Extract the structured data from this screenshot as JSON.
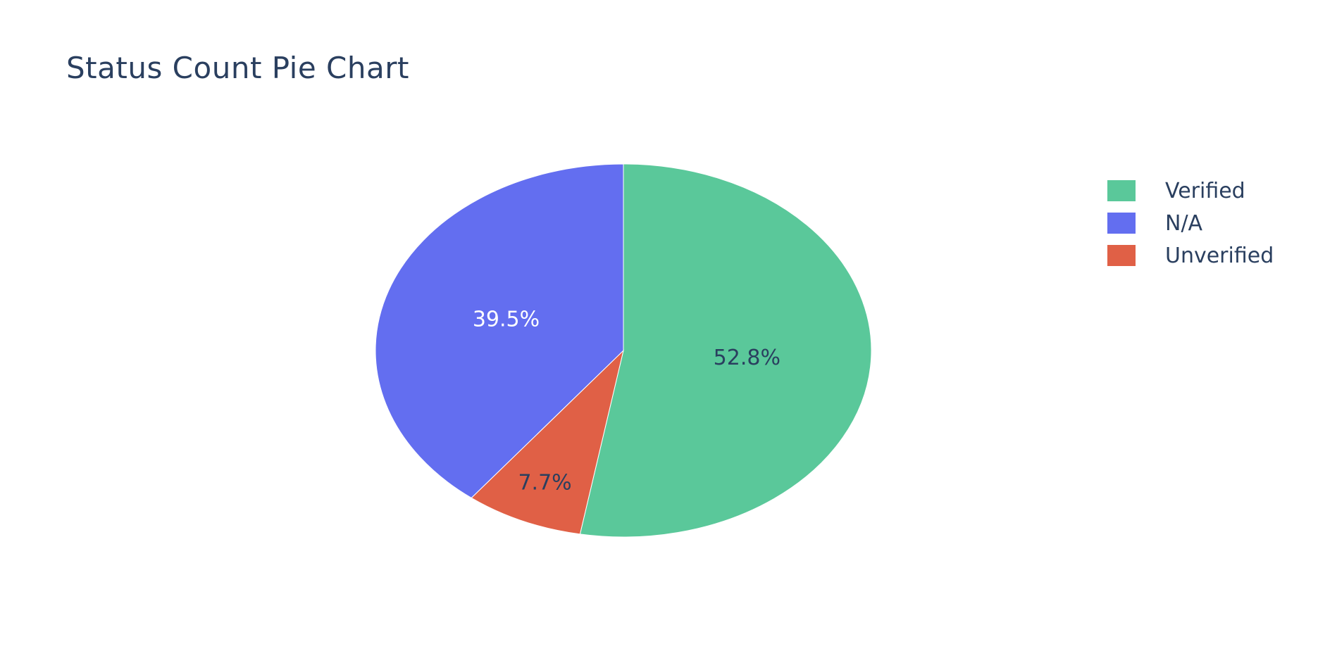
{
  "chart_data": {
    "type": "pie",
    "title": "Status Count Pie Chart",
    "slices": [
      {
        "name": "Verified",
        "percent": 52.8,
        "label": "52.8%",
        "color": "#5ac89a",
        "text_color": "#2a3f5f"
      },
      {
        "name": "Unverified",
        "percent": 7.7,
        "label": "7.7%",
        "color": "#e06046",
        "text_color": "#2a3f5f"
      },
      {
        "name": "N/A",
        "percent": 39.5,
        "label": "39.5%",
        "color": "#636ef0",
        "text_color": "#ffffff"
      }
    ],
    "legend": {
      "placement": "top-right",
      "items": [
        {
          "name": "Verified",
          "color": "#5ac89a"
        },
        {
          "name": "N/A",
          "color": "#636ef0"
        },
        {
          "name": "Unverified",
          "color": "#e06046"
        }
      ]
    }
  }
}
